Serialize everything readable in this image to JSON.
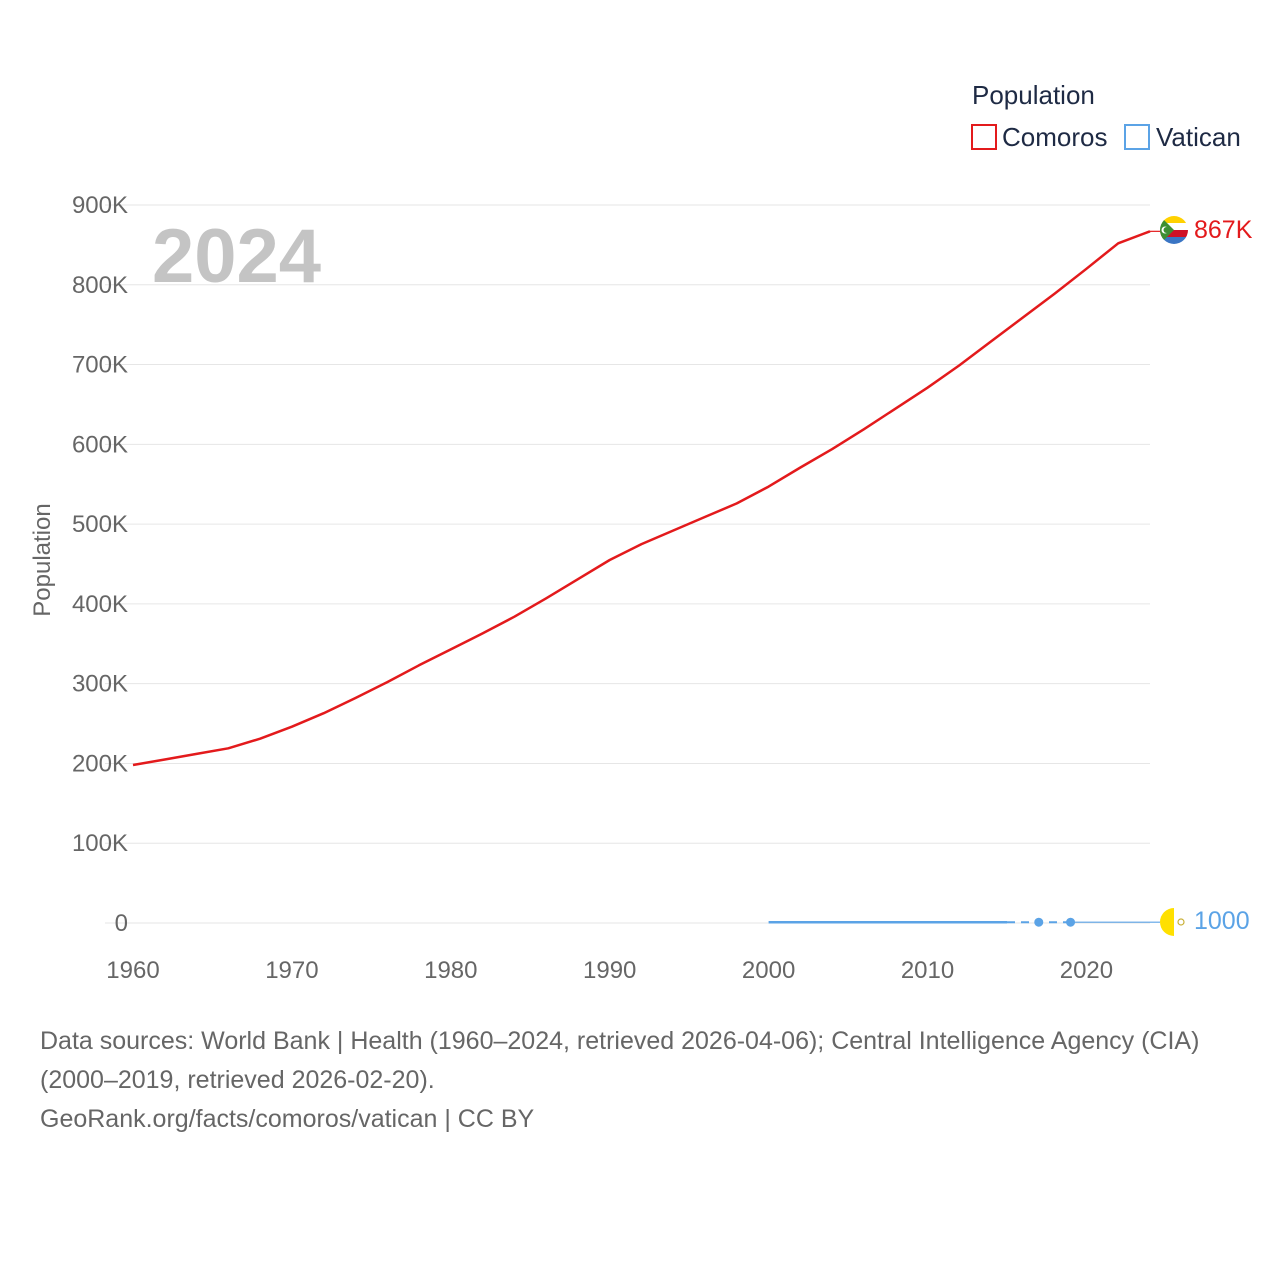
{
  "chart_data": {
    "type": "line",
    "year_label": "2024",
    "ylabel": "Population",
    "legend_title": "Population",
    "xlim": [
      1960,
      2024
    ],
    "ylim": [
      0,
      900000
    ],
    "x_ticks": [
      1960,
      1970,
      1980,
      1990,
      2000,
      2010,
      2020
    ],
    "x_tick_labels": [
      "1960",
      "1970",
      "1980",
      "1990",
      "2000",
      "2010",
      "2020"
    ],
    "y_ticks": [
      0,
      100000,
      200000,
      300000,
      400000,
      500000,
      600000,
      700000,
      800000,
      900000
    ],
    "y_tick_labels": [
      "0",
      "100K",
      "200K",
      "300K",
      "400K",
      "500K",
      "600K",
      "700K",
      "800K",
      "900K"
    ],
    "series": [
      {
        "name": "Comoros",
        "color": "#e31a1c",
        "end_label": "867K",
        "flag": "comoros-flag",
        "x": [
          1960,
          1962,
          1964,
          1966,
          1968,
          1970,
          1972,
          1974,
          1976,
          1978,
          1980,
          1982,
          1984,
          1986,
          1988,
          1990,
          1992,
          1994,
          1996,
          1998,
          2000,
          2002,
          2004,
          2006,
          2008,
          2010,
          2012,
          2014,
          2016,
          2018,
          2020,
          2022,
          2024
        ],
        "values": [
          198000,
          205000,
          212000,
          219000,
          231000,
          246000,
          263000,
          282000,
          302000,
          323000,
          343000,
          363000,
          384000,
          407000,
          431000,
          455000,
          475000,
          492000,
          509000,
          526000,
          547000,
          571000,
          594000,
          619000,
          645000,
          671000,
          699000,
          729000,
          759000,
          789000,
          820000,
          852000,
          867000
        ]
      },
      {
        "name": "Vatican",
        "color": "#5ba3e6",
        "end_label": "1000",
        "flag": "vatican-flag",
        "solid_x": [
          2000,
          2015
        ],
        "solid_values": [
          1000,
          1000
        ],
        "dashed_x": [
          2015,
          2019
        ],
        "dashed_values": [
          1000,
          1000
        ],
        "points_x": [
          2017,
          2019
        ],
        "points_values": [
          1000,
          1000
        ],
        "tail_x": [
          2019,
          2024
        ],
        "tail_values": [
          1000,
          1000
        ]
      }
    ]
  },
  "source": {
    "line1": "Data sources: World Bank | Health (1960–2024, retrieved 2026-04-06); Central Intelligence Agency (CIA)",
    "line2": "(2000–2019, retrieved 2026-02-20).",
    "line3": "GeoRank.org/facts/comoros/vatican | CC BY"
  }
}
